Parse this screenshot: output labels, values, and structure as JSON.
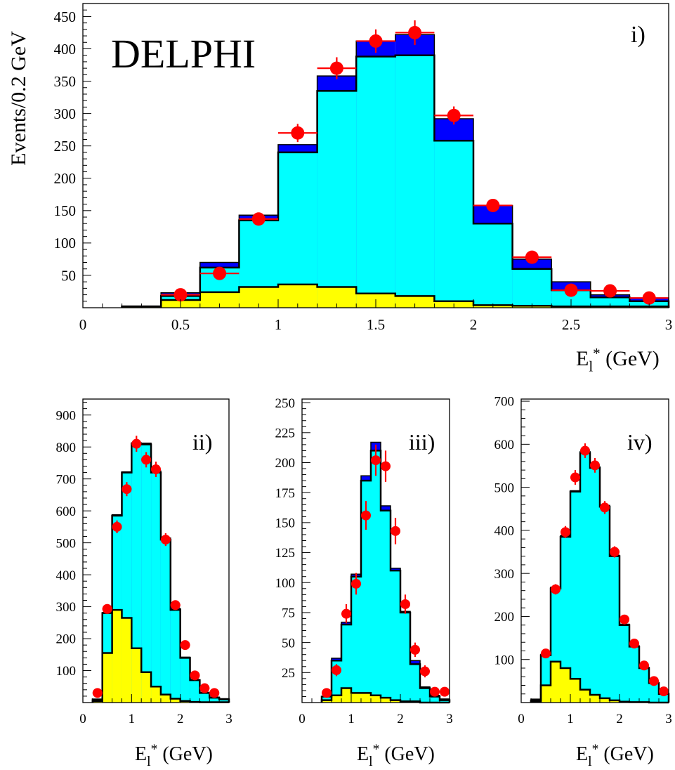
{
  "figure": {
    "experiment_label": "DELPHI",
    "colors": {
      "background_component": "#ffff00",
      "signal_component": "#00ffff",
      "extra_component": "#0000ff",
      "data_points": "#ff0000",
      "outline": "#000000"
    }
  },
  "chart_data": [
    {
      "type": "bar",
      "panel": "i)",
      "xlabel": "E_l* (GeV)",
      "ylabel": "Events/0.2 GeV",
      "xlim": [
        0,
        3
      ],
      "ylim": [
        0,
        470
      ],
      "bin_width": 0.2,
      "x_ticks": [
        "0",
        "0.5",
        "1",
        "1.5",
        "2",
        "2.5",
        "3"
      ],
      "y_ticks": [
        "50",
        "100",
        "150",
        "200",
        "250",
        "300",
        "350",
        "400",
        "450"
      ],
      "bin_edges": [
        0.2,
        0.4,
        0.6,
        0.8,
        1.0,
        1.2,
        1.4,
        1.6,
        1.8,
        2.0,
        2.2,
        2.4,
        2.6,
        2.8,
        3.0
      ],
      "series": [
        {
          "name": "",
          "color": "#ffff00",
          "values": [
            2,
            12,
            24,
            32,
            36,
            32,
            22,
            18,
            10,
            4,
            3,
            2,
            2,
            2
          ]
        },
        {
          "name": "",
          "color": "#00ffff",
          "values": [
            2,
            18,
            62,
            135,
            240,
            335,
            388,
            390,
            258,
            130,
            60,
            27,
            16,
            10
          ]
        },
        {
          "name": "",
          "color": "#0000ff",
          "values": [
            2,
            23,
            70,
            143,
            252,
            358,
            412,
            422,
            292,
            158,
            75,
            40,
            20,
            15
          ]
        }
      ],
      "points": [
        {
          "x": 0.5,
          "y": 20,
          "err": 4
        },
        {
          "x": 0.7,
          "y": 53,
          "err": 7
        },
        {
          "x": 0.9,
          "y": 137,
          "err": 10
        },
        {
          "x": 1.1,
          "y": 270,
          "err": 14
        },
        {
          "x": 1.3,
          "y": 370,
          "err": 17
        },
        {
          "x": 1.5,
          "y": 412,
          "err": 18
        },
        {
          "x": 1.7,
          "y": 425,
          "err": 19
        },
        {
          "x": 1.9,
          "y": 297,
          "err": 14
        },
        {
          "x": 2.1,
          "y": 158,
          "err": 9
        },
        {
          "x": 2.3,
          "y": 78,
          "err": 7
        },
        {
          "x": 2.5,
          "y": 27,
          "err": 5
        },
        {
          "x": 2.7,
          "y": 26,
          "err": 5
        },
        {
          "x": 2.9,
          "y": 15,
          "err": 4
        }
      ]
    },
    {
      "type": "bar",
      "panel": "ii)",
      "xlabel": "E_l* (GeV)",
      "ylabel": "",
      "xlim": [
        0,
        3
      ],
      "ylim": [
        0,
        950
      ],
      "bin_width": 0.2,
      "x_ticks": [
        "0",
        "1",
        "2",
        "3"
      ],
      "y_ticks": [
        "100",
        "200",
        "300",
        "400",
        "500",
        "600",
        "700",
        "800",
        "900"
      ],
      "bin_edges": [
        0.2,
        0.4,
        0.6,
        0.8,
        1.0,
        1.2,
        1.4,
        1.6,
        1.8,
        2.0,
        2.2,
        2.4,
        2.6,
        2.8,
        3.0
      ],
      "series": [
        {
          "name": "",
          "color": "#ffff00",
          "values": [
            5,
            155,
            290,
            265,
            170,
            95,
            50,
            25,
            12,
            5,
            2,
            1,
            1,
            1
          ]
        },
        {
          "name": "",
          "color": "#00ffff",
          "values": [
            10,
            280,
            585,
            720,
            810,
            808,
            720,
            510,
            290,
            140,
            70,
            30,
            15,
            10
          ]
        },
        {
          "name": "",
          "color": "#0000ff",
          "values": [
            10,
            282,
            588,
            722,
            813,
            812,
            725,
            515,
            295,
            142,
            72,
            32,
            17,
            12
          ]
        }
      ],
      "points": [
        {
          "x": 0.3,
          "y": 30,
          "err": 5
        },
        {
          "x": 0.5,
          "y": 293,
          "err": 15
        },
        {
          "x": 0.7,
          "y": 550,
          "err": 20
        },
        {
          "x": 0.9,
          "y": 668,
          "err": 22
        },
        {
          "x": 1.1,
          "y": 810,
          "err": 25
        },
        {
          "x": 1.3,
          "y": 760,
          "err": 24
        },
        {
          "x": 1.5,
          "y": 730,
          "err": 24
        },
        {
          "x": 1.7,
          "y": 510,
          "err": 20
        },
        {
          "x": 1.9,
          "y": 305,
          "err": 15
        },
        {
          "x": 2.1,
          "y": 180,
          "err": 12
        },
        {
          "x": 2.3,
          "y": 85,
          "err": 8
        },
        {
          "x": 2.5,
          "y": 45,
          "err": 6
        },
        {
          "x": 2.7,
          "y": 30,
          "err": 5
        }
      ]
    },
    {
      "type": "bar",
      "panel": "iii)",
      "xlabel": "E_l* (GeV)",
      "ylabel": "",
      "xlim": [
        0,
        3
      ],
      "ylim": [
        0,
        253
      ],
      "bin_width": 0.2,
      "x_ticks": [
        "0",
        "1",
        "2",
        "3"
      ],
      "y_ticks": [
        "25",
        "50",
        "75",
        "100",
        "125",
        "150",
        "175",
        "200",
        "225",
        "250"
      ],
      "bin_edges": [
        0.4,
        0.6,
        0.8,
        1.0,
        1.2,
        1.4,
        1.6,
        1.8,
        2.0,
        2.2,
        2.4,
        2.6,
        2.8,
        3.0
      ],
      "series": [
        {
          "name": "",
          "color": "#ffff00",
          "values": [
            2,
            6,
            12,
            8,
            8,
            6,
            4,
            2,
            1,
            1,
            0,
            0,
            0
          ]
        },
        {
          "name": "",
          "color": "#00ffff",
          "values": [
            5,
            35,
            65,
            105,
            185,
            210,
            160,
            110,
            75,
            32,
            12,
            5,
            2
          ]
        },
        {
          "name": "",
          "color": "#0000ff",
          "values": [
            5,
            37,
            67,
            107,
            189,
            217,
            164,
            112,
            76,
            35,
            13,
            6,
            3
          ]
        }
      ],
      "points": [
        {
          "x": 0.5,
          "y": 8,
          "err": 3
        },
        {
          "x": 0.7,
          "y": 27,
          "err": 5
        },
        {
          "x": 0.9,
          "y": 74,
          "err": 8
        },
        {
          "x": 1.1,
          "y": 99,
          "err": 9
        },
        {
          "x": 1.3,
          "y": 156,
          "err": 12
        },
        {
          "x": 1.5,
          "y": 202,
          "err": 13
        },
        {
          "x": 1.7,
          "y": 197,
          "err": 13
        },
        {
          "x": 1.9,
          "y": 143,
          "err": 11
        },
        {
          "x": 2.1,
          "y": 82,
          "err": 8
        },
        {
          "x": 2.3,
          "y": 44,
          "err": 6
        },
        {
          "x": 2.5,
          "y": 26,
          "err": 5
        },
        {
          "x": 2.7,
          "y": 9,
          "err": 3
        },
        {
          "x": 2.9,
          "y": 9,
          "err": 3
        }
      ]
    },
    {
      "type": "bar",
      "panel": "iv)",
      "xlabel": "E_l* (GeV)",
      "ylabel": "",
      "xlim": [
        0,
        3
      ],
      "ylim": [
        0,
        705
      ],
      "bin_width": 0.2,
      "x_ticks": [
        "0",
        "1",
        "2",
        "3"
      ],
      "y_ticks": [
        "100",
        "200",
        "300",
        "400",
        "500",
        "600",
        "700"
      ],
      "bin_edges": [
        0.2,
        0.4,
        0.6,
        0.8,
        1.0,
        1.2,
        1.4,
        1.6,
        1.8,
        2.0,
        2.2,
        2.4,
        2.6,
        2.8,
        3.0
      ],
      "series": [
        {
          "name": "",
          "color": "#ffff00",
          "values": [
            2,
            40,
            95,
            80,
            55,
            30,
            18,
            10,
            5,
            2,
            1,
            1,
            0,
            0
          ]
        },
        {
          "name": "",
          "color": "#00ffff",
          "values": [
            5,
            110,
            265,
            385,
            490,
            580,
            545,
            455,
            340,
            180,
            130,
            80,
            45,
            20
          ]
        },
        {
          "name": "",
          "color": "#0000ff",
          "values": [
            8,
            112,
            268,
            388,
            492,
            583,
            548,
            458,
            342,
            182,
            132,
            82,
            47,
            22
          ]
        }
      ],
      "points": [
        {
          "x": 0.5,
          "y": 114,
          "err": 8
        },
        {
          "x": 0.7,
          "y": 263,
          "err": 12
        },
        {
          "x": 0.9,
          "y": 396,
          "err": 14
        },
        {
          "x": 1.1,
          "y": 523,
          "err": 17
        },
        {
          "x": 1.3,
          "y": 585,
          "err": 17
        },
        {
          "x": 1.5,
          "y": 551,
          "err": 17
        },
        {
          "x": 1.7,
          "y": 453,
          "err": 15
        },
        {
          "x": 1.9,
          "y": 350,
          "err": 13
        },
        {
          "x": 2.1,
          "y": 193,
          "err": 10
        },
        {
          "x": 2.3,
          "y": 137,
          "err": 8
        },
        {
          "x": 2.5,
          "y": 86,
          "err": 7
        },
        {
          "x": 2.7,
          "y": 50,
          "err": 5
        },
        {
          "x": 2.9,
          "y": 26,
          "err": 4
        }
      ]
    }
  ]
}
